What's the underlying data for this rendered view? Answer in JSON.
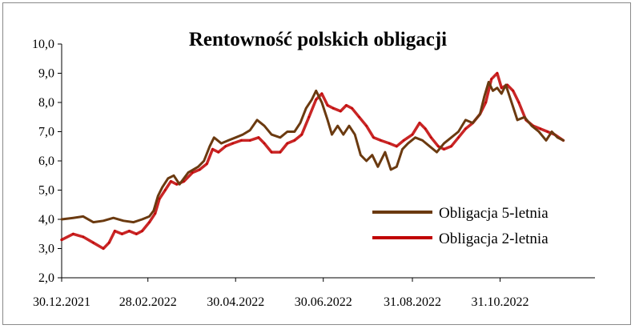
{
  "chart_data": {
    "type": "line",
    "title": "Rentowność polskich obligacji",
    "xlabel": "",
    "ylabel": "",
    "ylim": [
      2.0,
      10.0
    ],
    "yticks": [
      2.0,
      3.0,
      4.0,
      5.0,
      6.0,
      7.0,
      8.0,
      9.0,
      10.0
    ],
    "ytick_labels": [
      "2,0",
      "3,0",
      "4,0",
      "5,0",
      "6,0",
      "7,0",
      "8,0",
      "9,0",
      "10,0"
    ],
    "xlim": [
      "2021-12-30",
      "2023-01-05"
    ],
    "xticks": [
      "2021-12-30",
      "2022-02-28",
      "2022-04-30",
      "2022-06-30",
      "2022-08-31",
      "2022-10-31"
    ],
    "xtick_labels": [
      "30.12.2021",
      "28.02.2022",
      "30.04.2022",
      "30.06.2022",
      "31.08.2022",
      "31.10.2022"
    ],
    "legend_position": "bottom-right",
    "grid": false,
    "series": [
      {
        "name": "Obligacja 5-letnia",
        "color": "#6b3a10",
        "points": [
          [
            "2021-12-30",
            4.0
          ],
          [
            "2022-01-07",
            4.05
          ],
          [
            "2022-01-14",
            4.1
          ],
          [
            "2022-01-21",
            3.9
          ],
          [
            "2022-01-28",
            3.95
          ],
          [
            "2022-02-04",
            4.05
          ],
          [
            "2022-02-11",
            3.95
          ],
          [
            "2022-02-18",
            3.9
          ],
          [
            "2022-02-24",
            4.0
          ],
          [
            "2022-03-01",
            4.1
          ],
          [
            "2022-03-04",
            4.3
          ],
          [
            "2022-03-07",
            4.8
          ],
          [
            "2022-03-10",
            5.1
          ],
          [
            "2022-03-14",
            5.4
          ],
          [
            "2022-03-18",
            5.5
          ],
          [
            "2022-03-22",
            5.2
          ],
          [
            "2022-03-28",
            5.6
          ],
          [
            "2022-04-04",
            5.8
          ],
          [
            "2022-04-08",
            6.0
          ],
          [
            "2022-04-12",
            6.5
          ],
          [
            "2022-04-15",
            6.8
          ],
          [
            "2022-04-20",
            6.6
          ],
          [
            "2022-04-25",
            6.7
          ],
          [
            "2022-04-30",
            6.8
          ],
          [
            "2022-05-05",
            6.9
          ],
          [
            "2022-05-10",
            7.05
          ],
          [
            "2022-05-15",
            7.4
          ],
          [
            "2022-05-20",
            7.2
          ],
          [
            "2022-05-25",
            6.9
          ],
          [
            "2022-05-31",
            6.8
          ],
          [
            "2022-06-05",
            7.0
          ],
          [
            "2022-06-10",
            7.0
          ],
          [
            "2022-06-14",
            7.3
          ],
          [
            "2022-06-18",
            7.8
          ],
          [
            "2022-06-22",
            8.1
          ],
          [
            "2022-06-25",
            8.4
          ],
          [
            "2022-06-29",
            8.0
          ],
          [
            "2022-07-03",
            7.4
          ],
          [
            "2022-07-06",
            6.9
          ],
          [
            "2022-07-10",
            7.2
          ],
          [
            "2022-07-14",
            6.9
          ],
          [
            "2022-07-18",
            7.2
          ],
          [
            "2022-07-22",
            6.9
          ],
          [
            "2022-07-26",
            6.2
          ],
          [
            "2022-07-30",
            6.0
          ],
          [
            "2022-08-03",
            6.2
          ],
          [
            "2022-08-07",
            5.8
          ],
          [
            "2022-08-12",
            6.3
          ],
          [
            "2022-08-16",
            5.7
          ],
          [
            "2022-08-20",
            5.8
          ],
          [
            "2022-08-24",
            6.4
          ],
          [
            "2022-08-28",
            6.6
          ],
          [
            "2022-09-02",
            6.8
          ],
          [
            "2022-09-07",
            6.7
          ],
          [
            "2022-09-12",
            6.5
          ],
          [
            "2022-09-17",
            6.3
          ],
          [
            "2022-09-22",
            6.6
          ],
          [
            "2022-09-27",
            6.8
          ],
          [
            "2022-10-02",
            7.0
          ],
          [
            "2022-10-07",
            7.4
          ],
          [
            "2022-10-12",
            7.3
          ],
          [
            "2022-10-17",
            7.6
          ],
          [
            "2022-10-20",
            8.2
          ],
          [
            "2022-10-23",
            8.7
          ],
          [
            "2022-10-26",
            8.4
          ],
          [
            "2022-10-29",
            8.5
          ],
          [
            "2022-11-01",
            8.3
          ],
          [
            "2022-11-04",
            8.6
          ],
          [
            "2022-11-08",
            8.0
          ],
          [
            "2022-11-12",
            7.4
          ],
          [
            "2022-11-17",
            7.5
          ],
          [
            "2022-11-22",
            7.2
          ],
          [
            "2022-11-27",
            7.0
          ],
          [
            "2022-12-02",
            6.7
          ],
          [
            "2022-12-06",
            7.0
          ],
          [
            "2022-12-10",
            6.8
          ],
          [
            "2022-12-14",
            6.7
          ]
        ]
      },
      {
        "name": "Obligacja 2-letnia",
        "color": "#c00000",
        "points": [
          [
            "2021-12-30",
            3.3
          ],
          [
            "2022-01-07",
            3.5
          ],
          [
            "2022-01-14",
            3.4
          ],
          [
            "2022-01-21",
            3.2
          ],
          [
            "2022-01-28",
            3.0
          ],
          [
            "2022-02-01",
            3.2
          ],
          [
            "2022-02-05",
            3.6
          ],
          [
            "2022-02-10",
            3.5
          ],
          [
            "2022-02-15",
            3.6
          ],
          [
            "2022-02-20",
            3.5
          ],
          [
            "2022-02-24",
            3.6
          ],
          [
            "2022-03-01",
            3.9
          ],
          [
            "2022-03-05",
            4.2
          ],
          [
            "2022-03-08",
            4.7
          ],
          [
            "2022-03-12",
            5.0
          ],
          [
            "2022-03-16",
            5.3
          ],
          [
            "2022-03-20",
            5.2
          ],
          [
            "2022-03-25",
            5.3
          ],
          [
            "2022-03-31",
            5.6
          ],
          [
            "2022-04-05",
            5.7
          ],
          [
            "2022-04-10",
            5.9
          ],
          [
            "2022-04-14",
            6.4
          ],
          [
            "2022-04-18",
            6.3
          ],
          [
            "2022-04-23",
            6.5
          ],
          [
            "2022-04-28",
            6.6
          ],
          [
            "2022-05-04",
            6.7
          ],
          [
            "2022-05-10",
            6.7
          ],
          [
            "2022-05-16",
            6.8
          ],
          [
            "2022-05-20",
            6.6
          ],
          [
            "2022-05-25",
            6.3
          ],
          [
            "2022-05-31",
            6.3
          ],
          [
            "2022-06-05",
            6.6
          ],
          [
            "2022-06-10",
            6.7
          ],
          [
            "2022-06-15",
            6.9
          ],
          [
            "2022-06-20",
            7.5
          ],
          [
            "2022-06-25",
            8.1
          ],
          [
            "2022-06-29",
            8.3
          ],
          [
            "2022-07-03",
            7.9
          ],
          [
            "2022-07-07",
            7.8
          ],
          [
            "2022-07-12",
            7.7
          ],
          [
            "2022-07-16",
            7.9
          ],
          [
            "2022-07-20",
            7.8
          ],
          [
            "2022-07-25",
            7.5
          ],
          [
            "2022-07-30",
            7.2
          ],
          [
            "2022-08-04",
            6.8
          ],
          [
            "2022-08-09",
            6.7
          ],
          [
            "2022-08-15",
            6.6
          ],
          [
            "2022-08-20",
            6.5
          ],
          [
            "2022-08-25",
            6.7
          ],
          [
            "2022-08-31",
            6.9
          ],
          [
            "2022-09-05",
            7.3
          ],
          [
            "2022-09-09",
            7.1
          ],
          [
            "2022-09-13",
            6.8
          ],
          [
            "2022-09-18",
            6.5
          ],
          [
            "2022-09-22",
            6.4
          ],
          [
            "2022-09-27",
            6.5
          ],
          [
            "2022-10-02",
            6.8
          ],
          [
            "2022-10-07",
            7.1
          ],
          [
            "2022-10-12",
            7.3
          ],
          [
            "2022-10-17",
            7.6
          ],
          [
            "2022-10-21",
            8.0
          ],
          [
            "2022-10-25",
            8.8
          ],
          [
            "2022-10-29",
            9.0
          ],
          [
            "2022-11-01",
            8.5
          ],
          [
            "2022-11-05",
            8.6
          ],
          [
            "2022-11-09",
            8.4
          ],
          [
            "2022-11-13",
            8.0
          ],
          [
            "2022-11-18",
            7.4
          ],
          [
            "2022-11-23",
            7.2
          ],
          [
            "2022-11-28",
            7.1
          ],
          [
            "2022-12-03",
            7.0
          ],
          [
            "2022-12-08",
            6.9
          ],
          [
            "2022-12-14",
            6.7
          ]
        ]
      }
    ]
  }
}
